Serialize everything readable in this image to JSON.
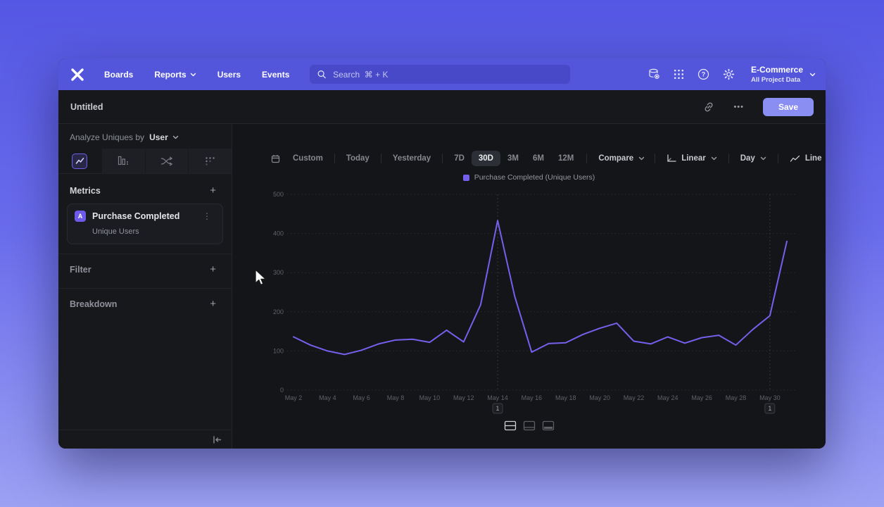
{
  "topnav": {
    "items": [
      "Boards",
      "Reports",
      "Users",
      "Events"
    ],
    "search_placeholder": "Search  ⌘ + K",
    "project_name": "E-Commerce",
    "project_subtitle": "All Project Data"
  },
  "header": {
    "title": "Untitled",
    "save": "Save"
  },
  "icons": {
    "more": "•••",
    "kebab": "⋮",
    "plus": "+"
  },
  "sidebar": {
    "analyze_label": "Analyze Uniques by",
    "analyze_value": "User",
    "metrics_title": "Metrics",
    "metric_badge": "A",
    "metric_name": "Purchase Completed",
    "metric_subtitle": "Unique Users",
    "filter_title": "Filter",
    "breakdown_title": "Breakdown"
  },
  "toolbar": {
    "ranges": [
      "Custom",
      "Today",
      "Yesterday",
      "7D",
      "30D",
      "3M",
      "6M",
      "12M"
    ],
    "selected_range": "30D",
    "compare": "Compare",
    "scale": "Linear",
    "interval": "Day",
    "chart_type": "Line"
  },
  "chart_data": {
    "type": "line",
    "legend_position": "top-center",
    "grid": true,
    "ylim": [
      0,
      500
    ],
    "yticks": [
      0,
      100,
      200,
      300,
      400,
      500
    ],
    "x": [
      "May 2",
      "May 3",
      "May 4",
      "May 5",
      "May 6",
      "May 7",
      "May 8",
      "May 9",
      "May 10",
      "May 11",
      "May 12",
      "May 13",
      "May 14",
      "May 15",
      "May 16",
      "May 17",
      "May 18",
      "May 19",
      "May 20",
      "May 21",
      "May 22",
      "May 23",
      "May 24",
      "May 25",
      "May 26",
      "May 27",
      "May 28",
      "May 29",
      "May 30",
      "May 31"
    ],
    "x_tick_labels": [
      "May 2",
      "May 4",
      "May 6",
      "May 8",
      "May 10",
      "May 12",
      "May 14",
      "May 16",
      "May 18",
      "May 20",
      "May 22",
      "May 24",
      "May 26",
      "May 28",
      "May 30"
    ],
    "series": [
      {
        "name": "Purchase Completed (Unique Users)",
        "color": "#7460EC",
        "values": [
          136,
          115,
          100,
          91,
          102,
          118,
          128,
          130,
          122,
          153,
          123,
          218,
          433,
          240,
          97,
          119,
          121,
          142,
          158,
          171,
          125,
          118,
          136,
          120,
          134,
          140,
          115,
          155,
          190,
          380
        ]
      }
    ],
    "annotations": [
      {
        "x": "May 14",
        "label": "1"
      },
      {
        "x": "May 30",
        "label": "1"
      }
    ]
  },
  "colors": {
    "accent": "#7460EC",
    "nav": "#5355DA",
    "save_button": "#8A8DF2"
  }
}
